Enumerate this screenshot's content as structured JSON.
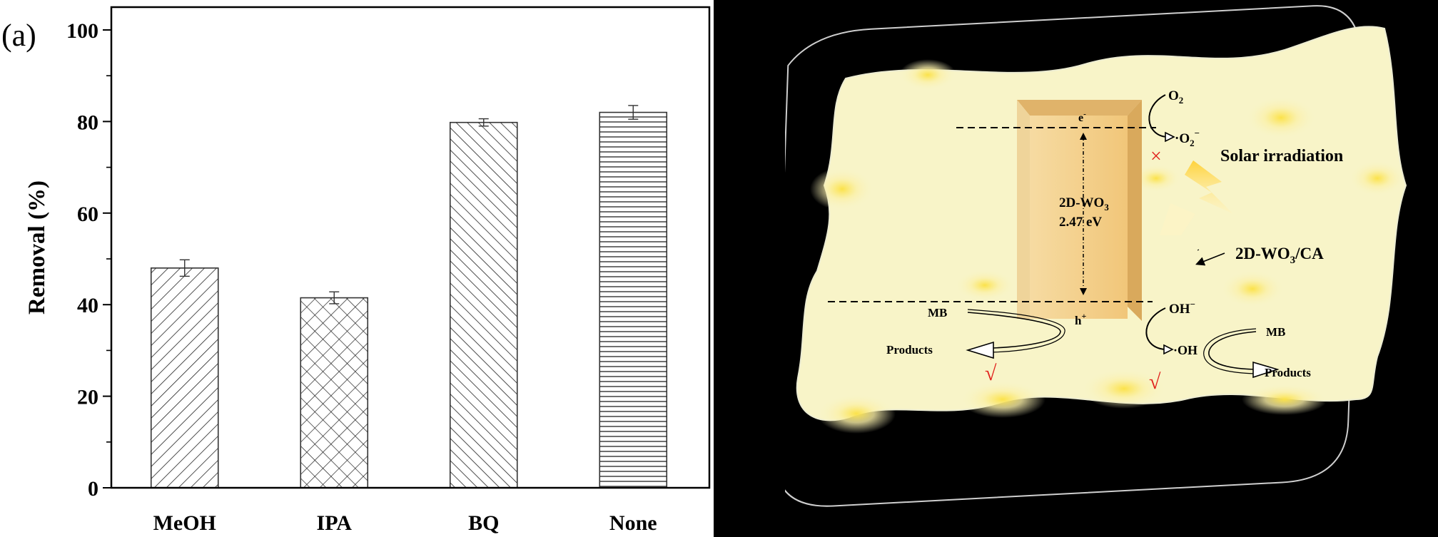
{
  "panel_label": "(a)",
  "chart_data": {
    "type": "bar",
    "categories": [
      "MeOH",
      "IPA",
      "BQ",
      "None"
    ],
    "values": [
      48,
      41.5,
      79.8,
      82
    ],
    "errors": [
      1.8,
      1.3,
      0.8,
      1.5
    ],
    "patterns": [
      "diag-right",
      "crosshatch",
      "diag-left",
      "horizontal"
    ],
    "ylabel": "Removal (%)",
    "xlabel": "",
    "ylim": [
      0,
      100
    ],
    "yticks": [
      0,
      20,
      40,
      60,
      80,
      100
    ],
    "grid": false,
    "legend": "none"
  },
  "diagram": {
    "o2": "O",
    "o2_sub": "2",
    "superoxide": "·O",
    "superoxide_sub": "2",
    "superoxide_sup": "−",
    "electron": "e",
    "electron_sup": "-",
    "hole": "h",
    "hole_sup": "+",
    "band_name": "2D-WO",
    "band_name_sub": "3",
    "band_gap": "2.47 eV",
    "solar": "Solar irradiation",
    "composite": "2D-WO",
    "composite_sub": "3",
    "composite_suffix": "/CA",
    "mb_left": "MB",
    "products_left": "Products",
    "oh_minus": "OH",
    "oh_minus_sup": "−",
    "hydroxyl": "·OH",
    "mb_right": "MB",
    "products_right": "Products",
    "cross_mark": "×",
    "check_left": "√",
    "check_right": "√",
    "colors": {
      "sheet": "#f8f4c8",
      "band": "#f3cf8a",
      "mark": "#e0201c"
    }
  }
}
